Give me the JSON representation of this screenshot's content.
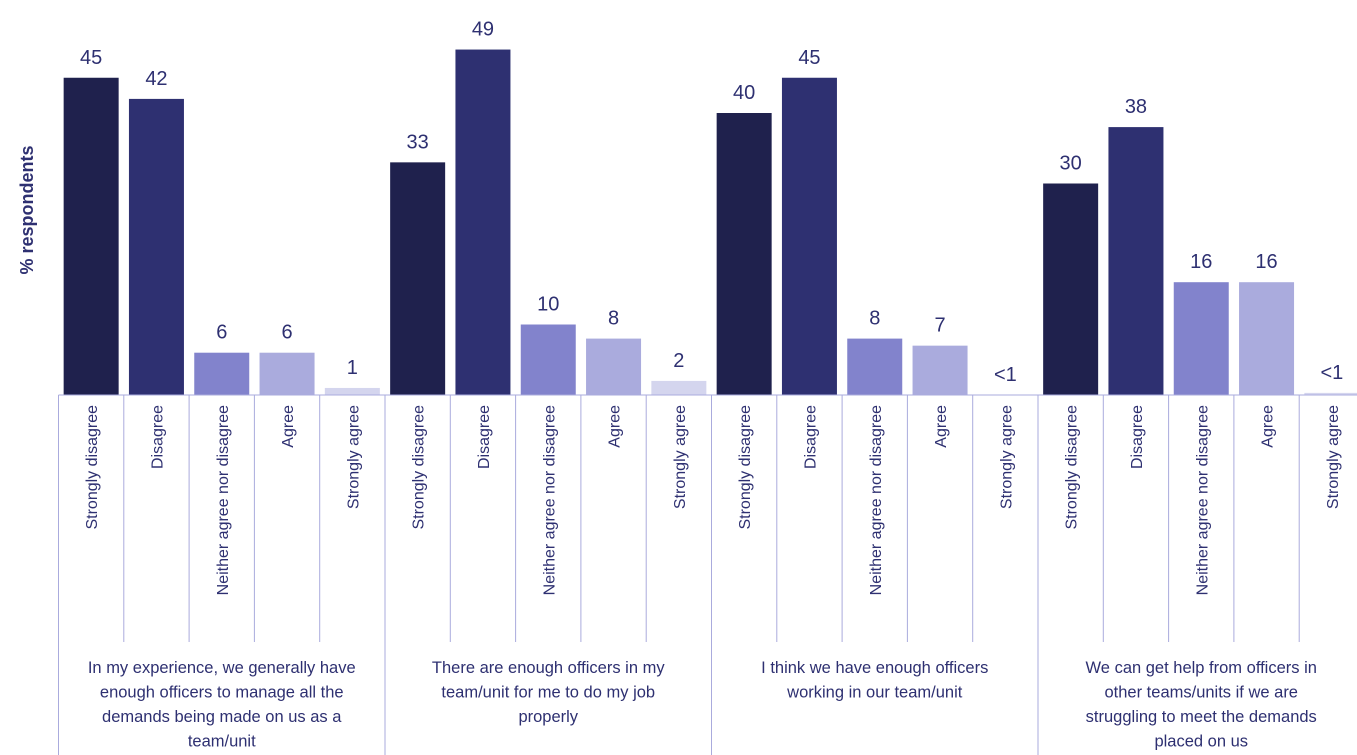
{
  "chart_data": {
    "type": "bar",
    "ylabel": "% respondents",
    "ylim": [
      0,
      50
    ],
    "categories": [
      "Strongly disagree",
      "Disagree",
      "Neither agree nor disagree",
      "Agree",
      "Strongly agree"
    ],
    "colors": [
      "#1f214d",
      "#2e3071",
      "#8283cc",
      "#aaabdd",
      "#d4d5ee"
    ],
    "groups": [
      {
        "label_lines": [
          "In my experience, we generally have",
          "enough officers to manage all the",
          "demands being made on us as a",
          "team/unit"
        ],
        "values": [
          45,
          42,
          6,
          6,
          1
        ],
        "value_labels": [
          "45",
          "42",
          "6",
          "6",
          "1"
        ]
      },
      {
        "label_lines": [
          "There are enough officers in my",
          "team/unit for me to do my job",
          "properly"
        ],
        "values": [
          33,
          49,
          10,
          8,
          2
        ],
        "value_labels": [
          "33",
          "49",
          "10",
          "8",
          "2"
        ]
      },
      {
        "label_lines": [
          "I think we have enough officers",
          "working in our team/unit"
        ],
        "values": [
          40,
          45,
          8,
          7,
          0
        ],
        "value_labels": [
          "40",
          "45",
          "8",
          "7",
          "<1"
        ]
      },
      {
        "label_lines": [
          "We can get help from officers in",
          "other teams/units if we are",
          "struggling to meet the demands",
          "placed on us"
        ],
        "values": [
          30,
          38,
          16,
          16,
          0.3
        ],
        "value_labels": [
          "30",
          "38",
          "16",
          "16",
          "<1"
        ]
      }
    ]
  }
}
